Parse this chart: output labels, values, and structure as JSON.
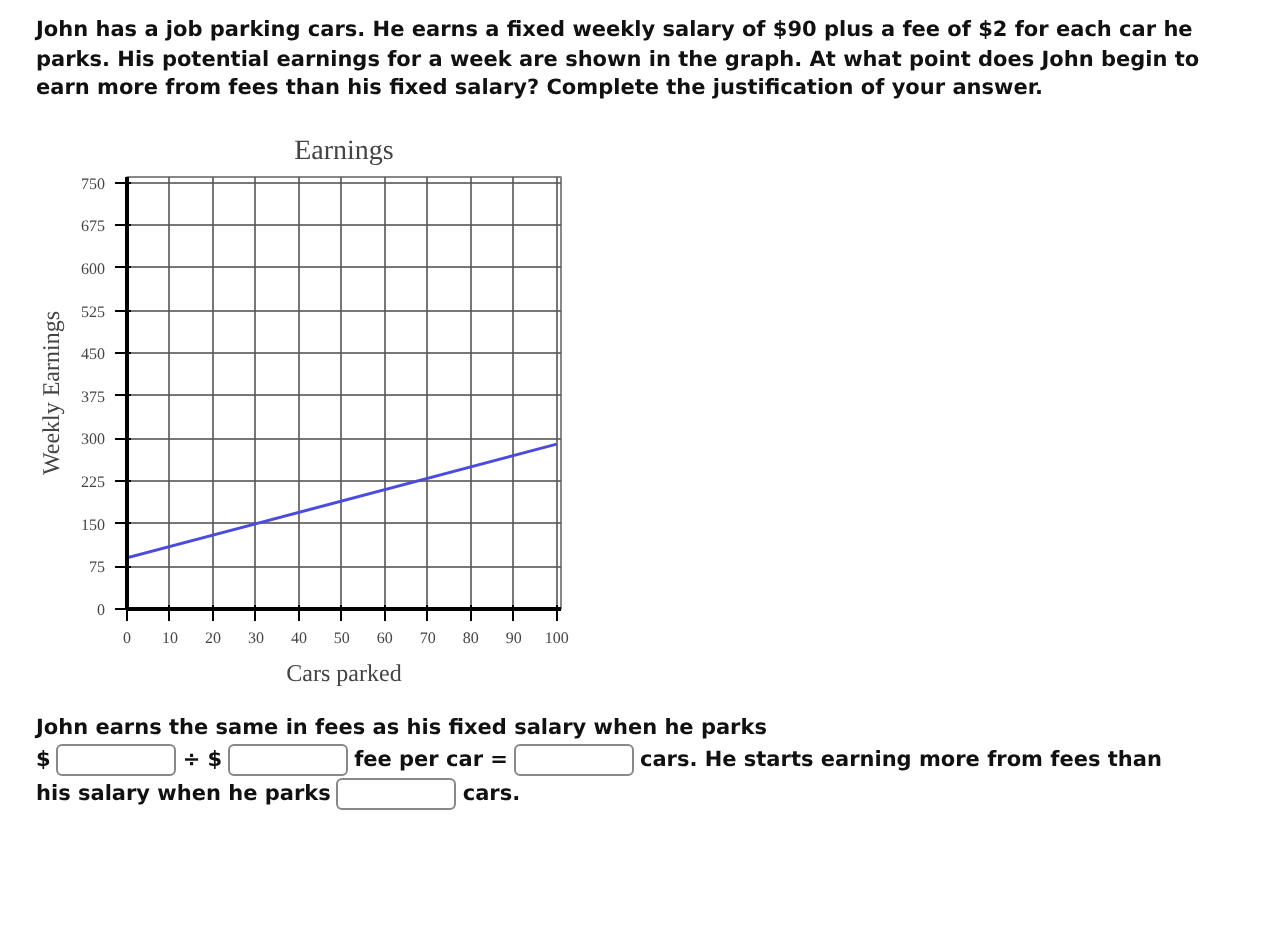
{
  "chart_data": {
    "type": "line",
    "title": "Earnings",
    "xlabel": "Cars parked",
    "ylabel": "Weekly Earnings",
    "x": [
      0,
      100
    ],
    "series": [
      {
        "color": "#4b4bdc",
        "values": [
          90,
          290
        ]
      }
    ],
    "xlim": [
      0,
      101
    ],
    "ylim": [
      0,
      760
    ],
    "xticks": [
      0,
      10,
      20,
      30,
      40,
      50,
      60,
      70,
      80,
      90,
      100
    ],
    "yticks": [
      0,
      75,
      150,
      225,
      300,
      375,
      450,
      525,
      600,
      675,
      750
    ],
    "grid": true,
    "annotations": [
      "John has a job parking cars. He earns a fixed weekly salary of $90 plus a fee of $2 for each car he parks. His potential earnings for a week are shown in the graph. At what point does John begin to earn more from fees than his fixed salary? Complete the justification of your answer.",
      "John earns the same in fees as his fixed salary when he parks",
      "$",
      "÷ $",
      "fee per car =",
      "cars. He starts earning more from fees than his salary when he parks",
      "cars."
    ]
  }
}
